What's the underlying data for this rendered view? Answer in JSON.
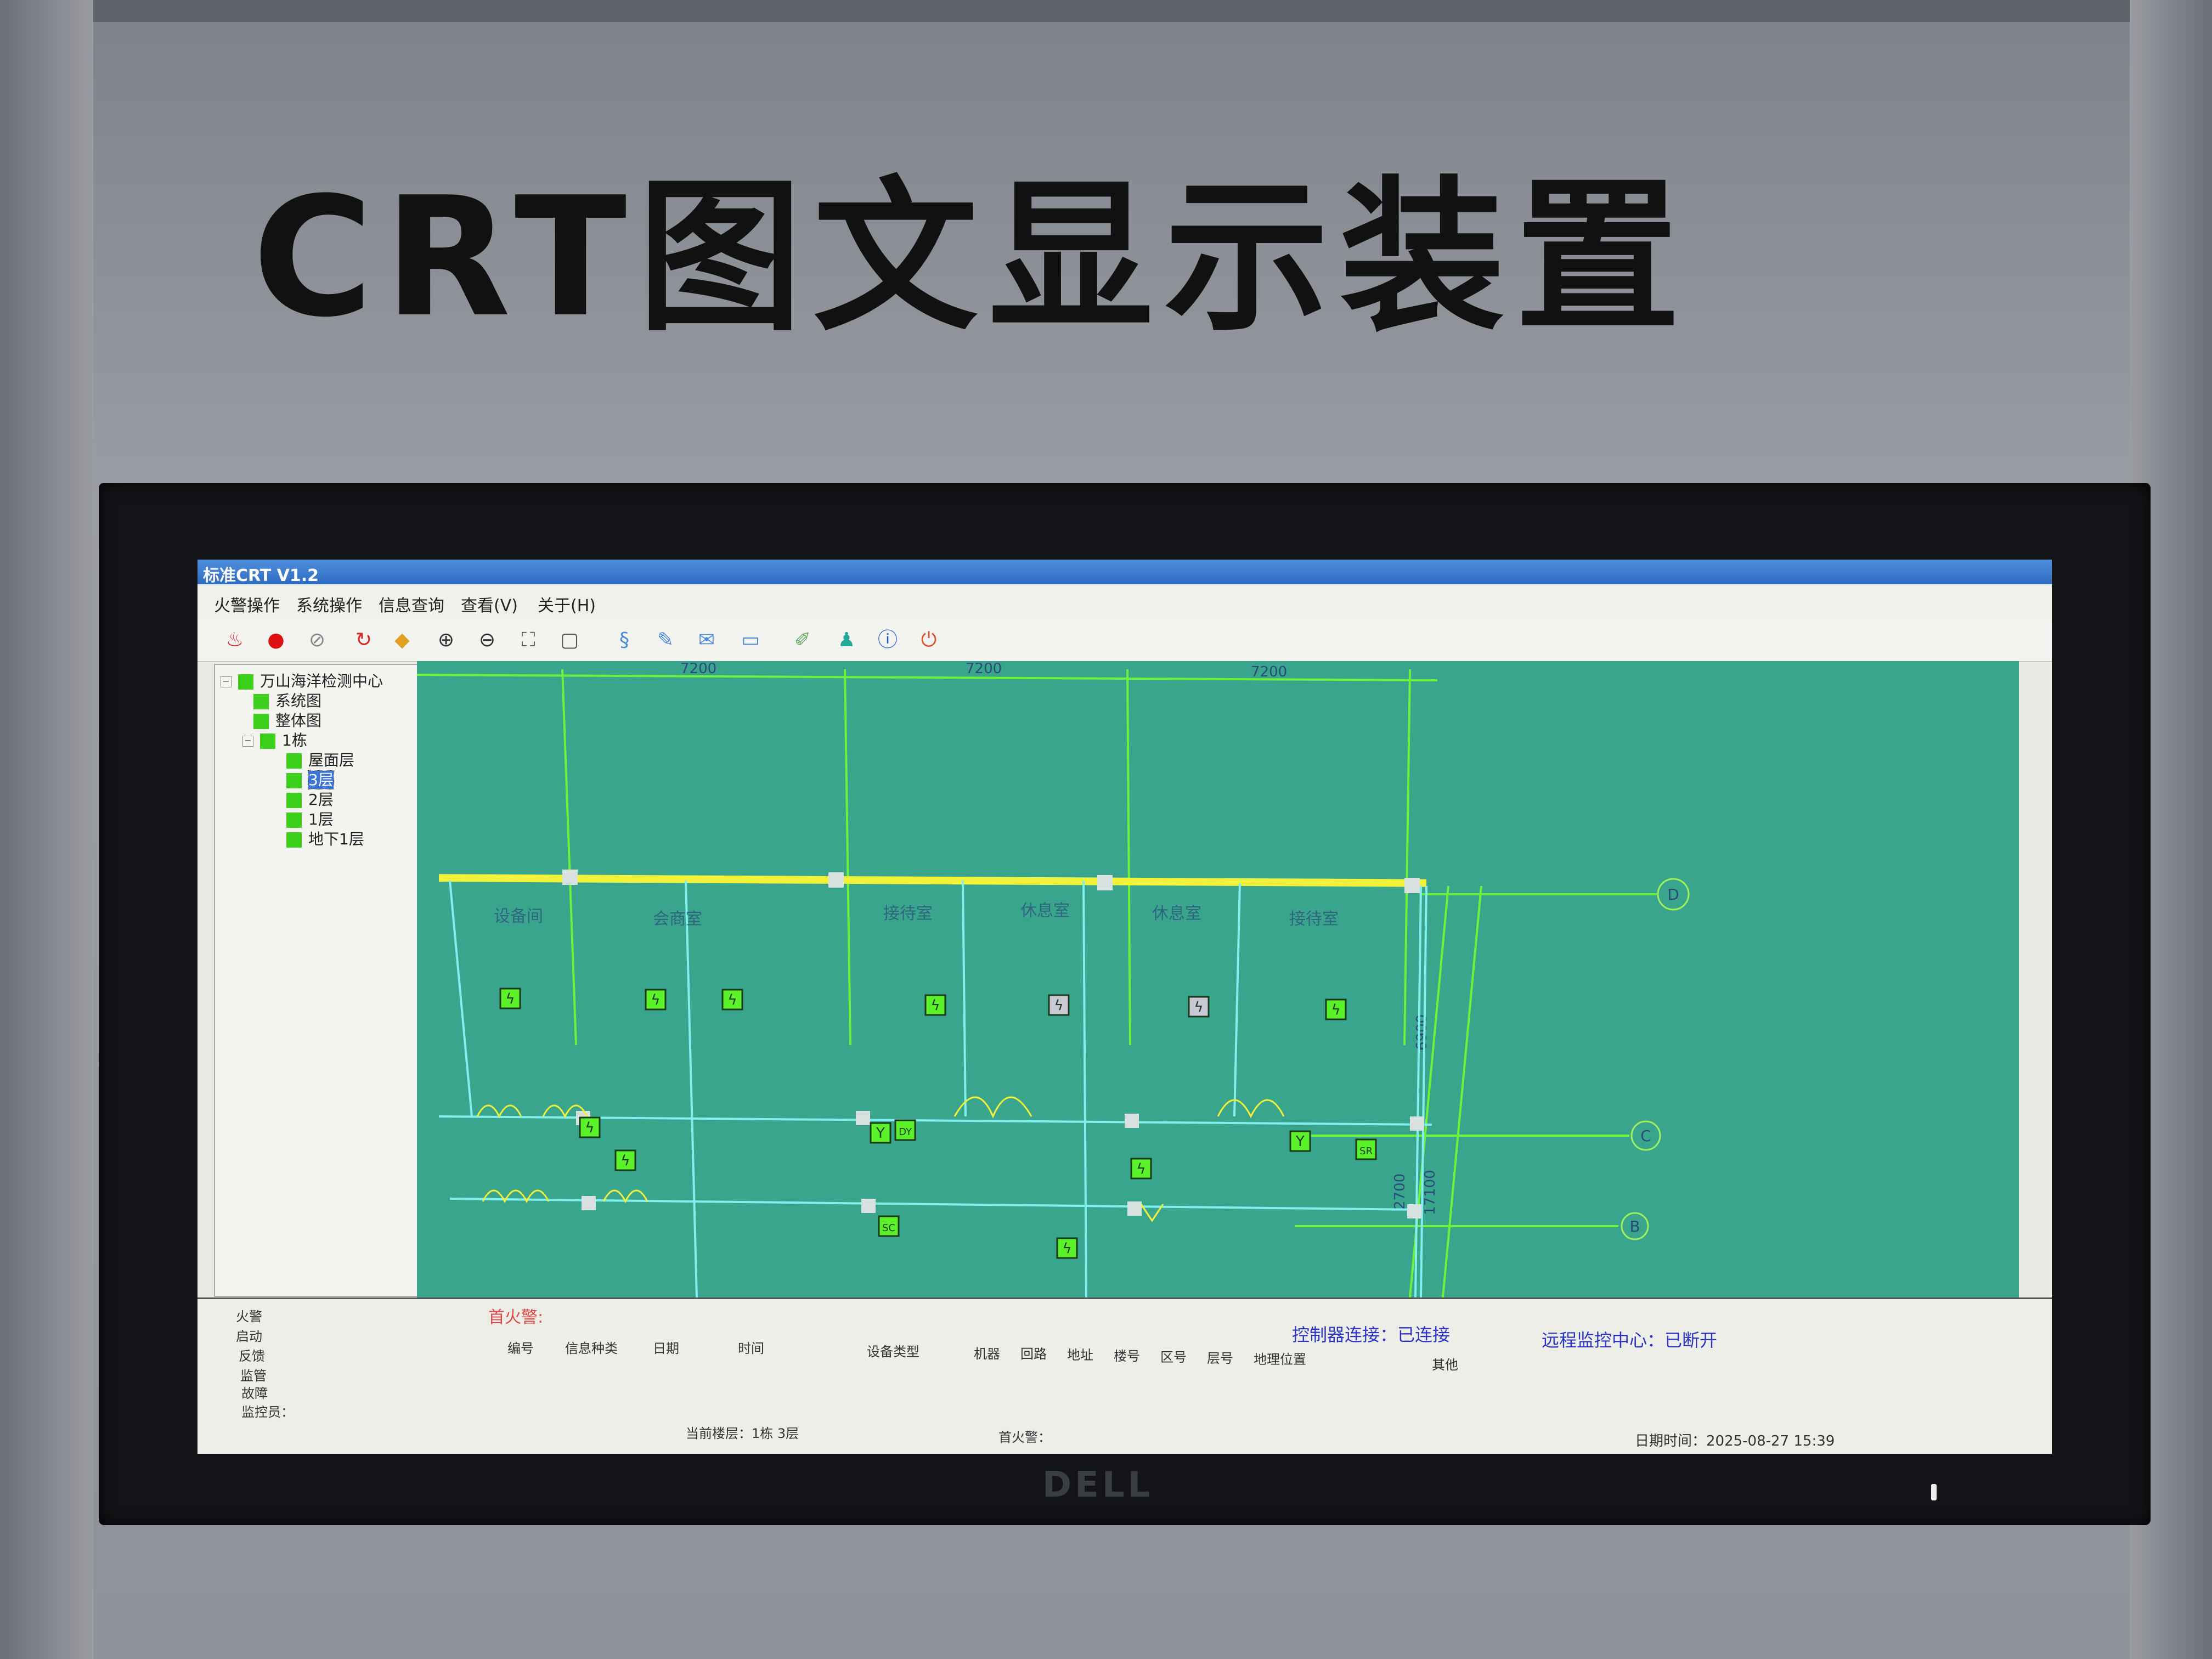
{
  "cabinet": {
    "title": "CRT图文显示装置",
    "monitor_brand": "DELL"
  },
  "window": {
    "title": "标准CRT V1.2"
  },
  "menu": [
    "火警操作",
    "系统操作",
    "信息查询",
    "查看(V)",
    "关于(H)"
  ],
  "toolbar": [
    "fire-alarm-icon",
    "stop-icon",
    "mute-icon",
    "reset-icon",
    "folder-icon",
    "zoom-in-icon",
    "zoom-out-icon",
    "fit-icon",
    "full-extent-icon",
    "query-icon",
    "edit-icon",
    "mail-icon",
    "message-icon",
    "pen-icon",
    "users-icon",
    "info-icon",
    "exit-icon"
  ],
  "tree": {
    "root": "万山海洋检测中心",
    "items": [
      {
        "label": "系统图",
        "level": 1
      },
      {
        "label": "整体图",
        "level": 1
      },
      {
        "label": "1栋",
        "level": 1,
        "expanded": true
      },
      {
        "label": "屋面层",
        "level": 2
      },
      {
        "label": "3层",
        "level": 2,
        "selected": true
      },
      {
        "label": "2层",
        "level": 2
      },
      {
        "label": "1层",
        "level": 2
      },
      {
        "label": "地下1层",
        "level": 2
      }
    ]
  },
  "floorplan": {
    "dimensions_top": [
      "7200",
      "7200",
      "7200"
    ],
    "dimensions_right": [
      "6900",
      "2700",
      "17100"
    ],
    "axes": [
      "D",
      "C",
      "B"
    ],
    "rooms": [
      "设备间",
      "会商室",
      "接待室",
      "休息室",
      "休息室",
      "接待室"
    ],
    "devices": [
      {
        "type": "smoke-detector",
        "status": "normal"
      },
      {
        "type": "smoke-detector",
        "status": "normal"
      },
      {
        "type": "smoke-detector",
        "status": "normal"
      },
      {
        "type": "smoke-detector",
        "status": "normal"
      },
      {
        "type": "smoke-detector",
        "status": "offline"
      },
      {
        "type": "smoke-detector",
        "status": "offline"
      },
      {
        "type": "smoke-detector",
        "status": "normal"
      },
      {
        "type": "smoke-detector",
        "status": "normal"
      },
      {
        "type": "smoke-detector",
        "status": "normal"
      },
      {
        "type": "hydrant",
        "status": "normal",
        "glyph": "Y"
      },
      {
        "type": "module",
        "status": "normal",
        "glyph": "DY"
      },
      {
        "type": "smoke-detector",
        "status": "normal"
      },
      {
        "type": "hydrant",
        "status": "normal",
        "glyph": "Y"
      },
      {
        "type": "module",
        "status": "normal",
        "glyph": "SR"
      },
      {
        "type": "module",
        "status": "normal",
        "glyph": "SC"
      },
      {
        "type": "smoke-detector",
        "status": "normal"
      }
    ],
    "colors": {
      "background": "#3aa58d",
      "wall": "#7ff0ef",
      "window": "#f2f23a",
      "grid": "#6cf23a",
      "normal": "#5cf22a",
      "offline": "#c9c9d6"
    }
  },
  "bottom": {
    "side_labels": [
      "火警",
      "启动",
      "反馈",
      "监管",
      "故障",
      "监控员："
    ],
    "first_alarm_title": "首火警:",
    "columns": [
      "编号",
      "信息种类",
      "日期",
      "时间",
      "设备类型",
      "机器",
      "回路",
      "地址",
      "楼号",
      "区号",
      "层号",
      "地理位置",
      "其他"
    ],
    "controller_status": "控制器连接：已连接",
    "remote_status": "远程监控中心：已断开",
    "current_floor": "当前楼层：1栋  3层",
    "first_alarm_footer": "首火警：",
    "datetime": "日期时间：2025-08-27 15:39"
  }
}
